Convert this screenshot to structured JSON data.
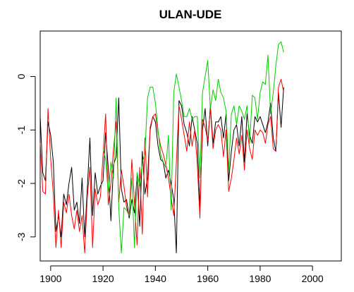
{
  "chart_data": {
    "type": "line",
    "title": "ULAN-UDE",
    "xlabel": "",
    "ylabel": "",
    "xlim": [
      1896,
      2011
    ],
    "ylim": [
      -3.45,
      0.85
    ],
    "x_ticks": [
      1900,
      1920,
      1940,
      1960,
      1980,
      2000
    ],
    "y_ticks": [
      -3,
      -2,
      -1,
      0
    ],
    "x_tick_labels": [
      "1900",
      "1920",
      "1940",
      "1960",
      "1980",
      "2000"
    ],
    "y_tick_labels": [
      "-3",
      "-2",
      "-1",
      "0"
    ],
    "grid": false,
    "legend": "none",
    "series": [
      {
        "color": "#000000",
        "x": [
          1896,
          1897,
          1898,
          1899,
          1900,
          1901,
          1902,
          1903,
          1904,
          1905,
          1906,
          1907,
          1908,
          1909,
          1910,
          1911,
          1912,
          1913,
          1914,
          1915,
          1916,
          1917,
          1918,
          1919,
          1920,
          1921,
          1922,
          1923,
          1924,
          1925,
          1926,
          1927,
          1928,
          1929,
          1930,
          1931,
          1932,
          1933,
          1934,
          1935,
          1936,
          1937,
          1938,
          1939,
          1940,
          1941,
          1942,
          1943,
          1944,
          1945,
          1946,
          1947,
          1948,
          1949,
          1950,
          1951,
          1952,
          1953,
          1954,
          1955,
          1956,
          1957,
          1958,
          1959,
          1960,
          1961,
          1962,
          1963,
          1964,
          1965,
          1966,
          1967,
          1968,
          1969,
          1970,
          1971,
          1972,
          1973,
          1974,
          1975,
          1976,
          1977,
          1978,
          1979,
          1980,
          1981,
          1982,
          1983,
          1984,
          1985,
          1986,
          1987,
          1988,
          1989
        ],
        "y": [
          -0.75,
          -1.8,
          -1.95,
          -0.85,
          -1.1,
          -1.6,
          -2.9,
          -2.6,
          -3.0,
          -2.2,
          -2.4,
          -2.0,
          -1.7,
          -2.5,
          -2.35,
          -2.75,
          -1.9,
          -3.0,
          -2.1,
          -1.15,
          -2.6,
          -1.8,
          -2.2,
          -2.05,
          -1.95,
          -1.05,
          -1.7,
          -2.7,
          -1.65,
          -1.5,
          -0.4,
          -2.1,
          -2.35,
          -2.3,
          -2.65,
          -2.3,
          -2.55,
          -1.85,
          -2.8,
          -1.4,
          -2.2,
          -1.9,
          -1.0,
          -0.75,
          -0.85,
          -1.3,
          -1.55,
          -1.6,
          -1.9,
          -1.75,
          -2.0,
          -2.3,
          -3.3,
          -0.45,
          -0.55,
          -0.9,
          -1.05,
          -1.3,
          -0.75,
          -1.0,
          -1.25,
          -2.45,
          -1.0,
          -0.6,
          -1.3,
          -0.55,
          -1.25,
          -0.85,
          -0.85,
          -0.75,
          -1.15,
          -0.7,
          -1.95,
          -1.4,
          -1.0,
          -0.9,
          -1.3,
          -0.75,
          -1.6,
          -0.7,
          -1.1,
          -1.25,
          -0.75,
          -0.85,
          -0.75,
          -0.9,
          -1.05,
          -0.85,
          -0.5,
          -1.15,
          -1.4,
          -0.3,
          -0.95,
          -0.2
        ]
      },
      {
        "color": "#ff0000",
        "x": [
          1896,
          1897,
          1898,
          1899,
          1900,
          1901,
          1902,
          1903,
          1904,
          1905,
          1906,
          1907,
          1908,
          1909,
          1910,
          1911,
          1912,
          1913,
          1914,
          1915,
          1916,
          1917,
          1918,
          1919,
          1921,
          1922,
          1923,
          1924,
          1925,
          1926,
          1927,
          1928,
          1929,
          1930,
          1931,
          1932,
          1933,
          1934,
          1935,
          1936,
          1937,
          1938,
          1939,
          1940,
          1941,
          1942,
          1943,
          1944,
          1945,
          1947,
          1948,
          1949,
          1950,
          1951,
          1952,
          1953,
          1954,
          1955,
          1956,
          1957,
          1958,
          1959,
          1960,
          1961,
          1962,
          1963,
          1964,
          1965,
          1966,
          1967,
          1968,
          1969,
          1970,
          1971,
          1972,
          1973,
          1974,
          1975,
          1976,
          1977,
          1978,
          1979,
          1980,
          1981,
          1982,
          1983,
          1984,
          1985,
          1986,
          1987,
          1988,
          1989
        ],
        "y": [
          -1.25,
          -2.15,
          -2.2,
          -0.6,
          -1.55,
          -2.2,
          -3.2,
          -2.5,
          -3.2,
          -2.35,
          -2.55,
          -2.2,
          -2.6,
          -2.85,
          -2.5,
          -2.9,
          -2.6,
          -3.3,
          -2.25,
          -1.7,
          -3.2,
          -2.1,
          -2.4,
          -2.25,
          -0.7,
          -2.4,
          -2.0,
          -1.35,
          -0.85,
          -2.35,
          -1.75,
          -2.05,
          -2.45,
          -2.6,
          -1.55,
          -2.35,
          -3.15,
          -1.7,
          -2.95,
          -1.15,
          -2.25,
          -0.95,
          -0.75,
          -0.7,
          -1.05,
          -1.3,
          -1.45,
          -1.65,
          -1.9,
          -2.6,
          -1.6,
          -0.55,
          -0.8,
          -1.1,
          -1.4,
          -0.85,
          -1.3,
          -1.0,
          -1.65,
          -2.65,
          -0.8,
          -0.95,
          -1.2,
          -0.6,
          -1.35,
          -1.0,
          -0.9,
          -1.0,
          -1.5,
          -1.0,
          -2.15,
          -1.9,
          -1.55,
          -1.15,
          -1.45,
          -1.1,
          -1.75,
          -1.0,
          -1.35,
          -1.55,
          -1.0,
          -1.1,
          -1.0,
          -1.05,
          -1.25,
          -0.9,
          -0.75,
          -1.35,
          -1.4,
          -0.2,
          -0.05,
          -0.3
        ]
      },
      {
        "color": "#00cc00",
        "x": [
          1920,
          1921,
          1922,
          1923,
          1924,
          1925,
          1926,
          1927,
          1928,
          1929,
          1930,
          1931,
          1932,
          1933,
          1934,
          1935,
          1936,
          1937,
          1938,
          1939,
          1940,
          1941,
          1942,
          1943,
          1944,
          1945,
          1946,
          1947,
          1948,
          1949,
          1950,
          1951,
          1952,
          1953,
          1954,
          1955,
          1956,
          1957,
          1958,
          1959,
          1960,
          1961,
          1962,
          1963,
          1964,
          1965,
          1966,
          1967,
          1968,
          1969,
          1970,
          1971,
          1972,
          1973,
          1974,
          1975,
          1976,
          1977,
          1978,
          1979,
          1980,
          1981,
          1982,
          1983,
          1984,
          1985,
          1986,
          1987,
          1988,
          1989
        ],
        "y": [
          -1.35,
          -1.55,
          -2.2,
          -1.6,
          -1.9,
          -0.4,
          -2.45,
          -3.3,
          -2.45,
          -2.5,
          -2.6,
          -1.9,
          -3.2,
          -1.8,
          -2.05,
          -1.6,
          -1.45,
          -0.4,
          -0.2,
          -0.2,
          -0.5,
          -1.0,
          -1.45,
          -1.6,
          -1.7,
          -1.1,
          -2.5,
          -0.3,
          0.05,
          -0.2,
          -0.45,
          -0.75,
          -0.75,
          -0.6,
          -0.8,
          -0.75,
          -0.75,
          -1.9,
          -0.3,
          0.0,
          0.3,
          -0.6,
          -0.25,
          -0.45,
          -0.05,
          -0.3,
          -0.4,
          -0.65,
          -1.75,
          -0.7,
          -0.55,
          -0.9,
          -0.55,
          -0.65,
          -0.8,
          -0.55,
          -1.25,
          -0.35,
          -0.4,
          -0.8,
          -0.3,
          -0.1,
          -0.15,
          0.4,
          -0.7,
          -0.3,
          0.2,
          0.6,
          0.65,
          0.45
        ]
      }
    ]
  }
}
